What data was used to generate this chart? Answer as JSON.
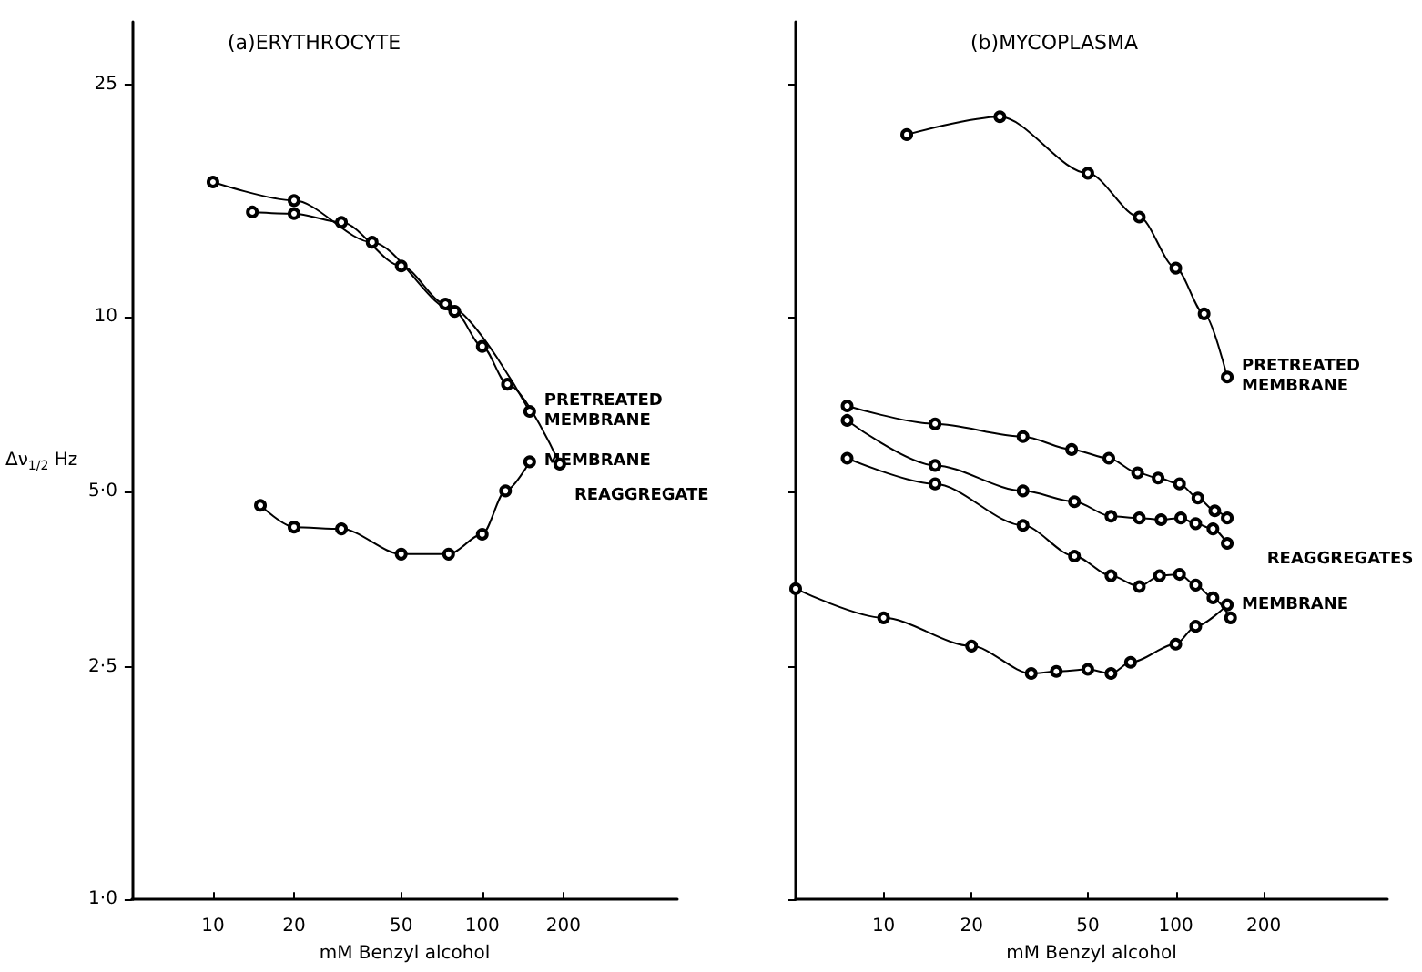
{
  "chart_data": [
    {
      "type": "line",
      "title": "(a)ERYTHROCYTE",
      "xlabel": "mM Benzyl alcohol",
      "ylabel": "Δν$_{1/2}$ Hz",
      "log": "xy",
      "grid": false,
      "legend": false,
      "marker": "circle",
      "line_style": "solid",
      "xlim": [
        5,
        530
      ],
      "xticks": [
        10,
        20,
        50,
        100,
        200
      ],
      "ylim": [
        1,
        32
      ],
      "yticks": [
        {
          "value": 1,
          "label": "1·0"
        },
        {
          "value": 2.5,
          "label": "2·5"
        },
        {
          "value": 5,
          "label": "5·0"
        },
        10,
        25
      ],
      "series": [
        {
          "name": "PRETREATED MEMBRANE",
          "color": "#000000",
          "x": [
            14,
            20,
            30,
            50,
            73,
            150
          ],
          "values": [
            15.1,
            15.0,
            14.5,
            12.2,
            10.5,
            6.87
          ]
        },
        {
          "name": "REAGGREGATE",
          "color": "#000000",
          "x": [
            10,
            20,
            39,
            79,
            100,
            124,
            194
          ],
          "values": [
            17.0,
            15.8,
            13.4,
            10.2,
            8.88,
            7.65,
            5.58
          ]
        },
        {
          "name": "MEMBRANE",
          "color": "#000000",
          "x": [
            15,
            20,
            30,
            50,
            75,
            100,
            122,
            150
          ],
          "values": [
            4.74,
            4.35,
            4.32,
            3.91,
            3.91,
            4.23,
            5.02,
            5.63
          ]
        }
      ]
    },
    {
      "type": "line",
      "title": "(b)MYCOPLASMA",
      "xlabel": "mM Benzyl alcohol",
      "log": "xy",
      "grid": false,
      "legend": false,
      "marker": "circle",
      "line_style": "solid",
      "tick_labels": "x",
      "xlim": [
        5,
        530
      ],
      "xticks": [
        10,
        20,
        50,
        100,
        200
      ],
      "ylim": [
        1,
        32
      ],
      "yticks": [
        {
          "value": 1,
          "label": null
        },
        {
          "value": 2.5,
          "label": null
        },
        {
          "value": 5,
          "label": null
        },
        {
          "value": 10,
          "label": null
        },
        {
          "value": 25,
          "label": null
        }
      ],
      "annotations": [
        "REAGGREGATES"
      ],
      "series": [
        {
          "name": "PRETREATED MEMBRANE",
          "color": "#000000",
          "x": [
            12,
            25,
            50,
            75,
            100,
            125,
            150
          ],
          "values": [
            20.5,
            22.0,
            17.6,
            14.8,
            12.1,
            10.1,
            7.87
          ]
        },
        {
          "color": "#000000",
          "x": [
            7.5,
            15,
            30,
            44,
            59,
            74,
            87,
            103,
            119,
            136,
            150
          ],
          "values": [
            7.02,
            6.54,
            6.22,
            5.91,
            5.71,
            5.39,
            5.28,
            5.16,
            4.88,
            4.64,
            4.51
          ]
        },
        {
          "color": "#000000",
          "x": [
            7.5,
            15,
            30,
            45,
            60,
            75,
            89,
            104,
            117,
            134,
            150
          ],
          "values": [
            6.63,
            5.55,
            5.02,
            4.81,
            4.54,
            4.51,
            4.48,
            4.51,
            4.41,
            4.32,
            4.08
          ]
        },
        {
          "color": "#000000",
          "x": [
            7.5,
            15,
            30,
            45,
            60,
            75,
            88,
            103,
            117,
            134,
            154
          ],
          "values": [
            5.71,
            5.16,
            4.38,
            3.88,
            3.59,
            3.44,
            3.59,
            3.61,
            3.46,
            3.29,
            3.04
          ]
        },
        {
          "name": "MEMBRANE",
          "color": "#000000",
          "x": [
            5,
            10,
            20,
            32,
            39,
            50,
            60,
            70,
            100,
            117,
            150
          ],
          "values": [
            3.41,
            3.04,
            2.72,
            2.44,
            2.46,
            2.48,
            2.44,
            2.55,
            2.74,
            2.94,
            3.2
          ]
        }
      ]
    }
  ]
}
